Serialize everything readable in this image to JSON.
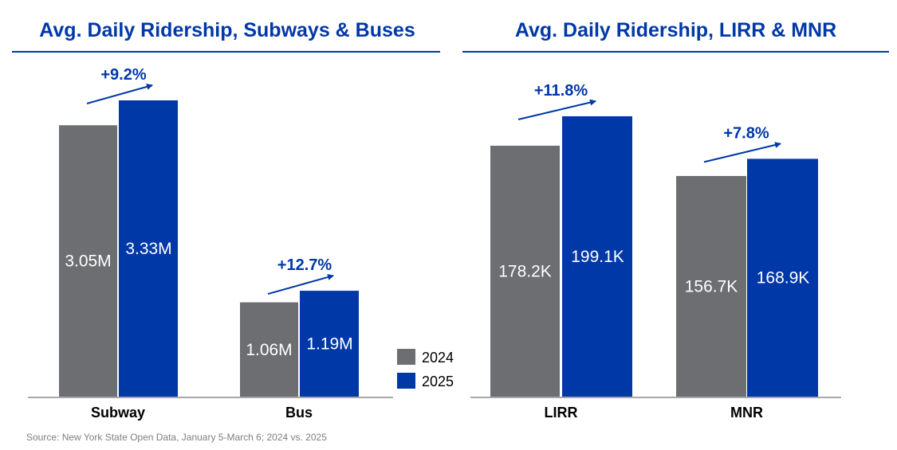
{
  "colors": {
    "y2024": "#6d6e71",
    "y2025": "#0038a8",
    "accent": "#0038a8",
    "axis": "#8c8c8c"
  },
  "source": "Source: New York State Open Data, January 5-March 6; 2024 vs. 2025",
  "chart_data": [
    {
      "type": "bar",
      "title": "Avg. Daily Ridership, Subways & Buses",
      "categories": [
        "Subway",
        "Bus"
      ],
      "series": [
        {
          "name": "2024",
          "values": [
            3.05,
            1.06
          ],
          "labels": [
            "3.05M",
            "1.06M"
          ]
        },
        {
          "name": "2025",
          "values": [
            3.33,
            1.19
          ],
          "labels": [
            "3.33M",
            "1.19M"
          ]
        }
      ],
      "unit": "millions",
      "changes": [
        "+9.2%",
        "+12.7%"
      ],
      "ylim": [
        0,
        3.33
      ],
      "legend": [
        "2024",
        "2025"
      ],
      "legend_position": "bottom-right",
      "grid": false,
      "xlabel": "",
      "ylabel": ""
    },
    {
      "type": "bar",
      "title": "Avg. Daily Ridership, LIRR & MNR",
      "categories": [
        "LIRR",
        "MNR"
      ],
      "series": [
        {
          "name": "2024",
          "values": [
            178.2,
            156.7
          ],
          "labels": [
            "178.2K",
            "156.7K"
          ]
        },
        {
          "name": "2025",
          "values": [
            199.1,
            168.9
          ],
          "labels": [
            "199.1K",
            "168.9K"
          ]
        }
      ],
      "unit": "thousands",
      "changes": [
        "+11.8%",
        "+7.8%"
      ],
      "ylim": [
        0,
        199.1
      ],
      "grid": false,
      "xlabel": "",
      "ylabel": ""
    }
  ]
}
